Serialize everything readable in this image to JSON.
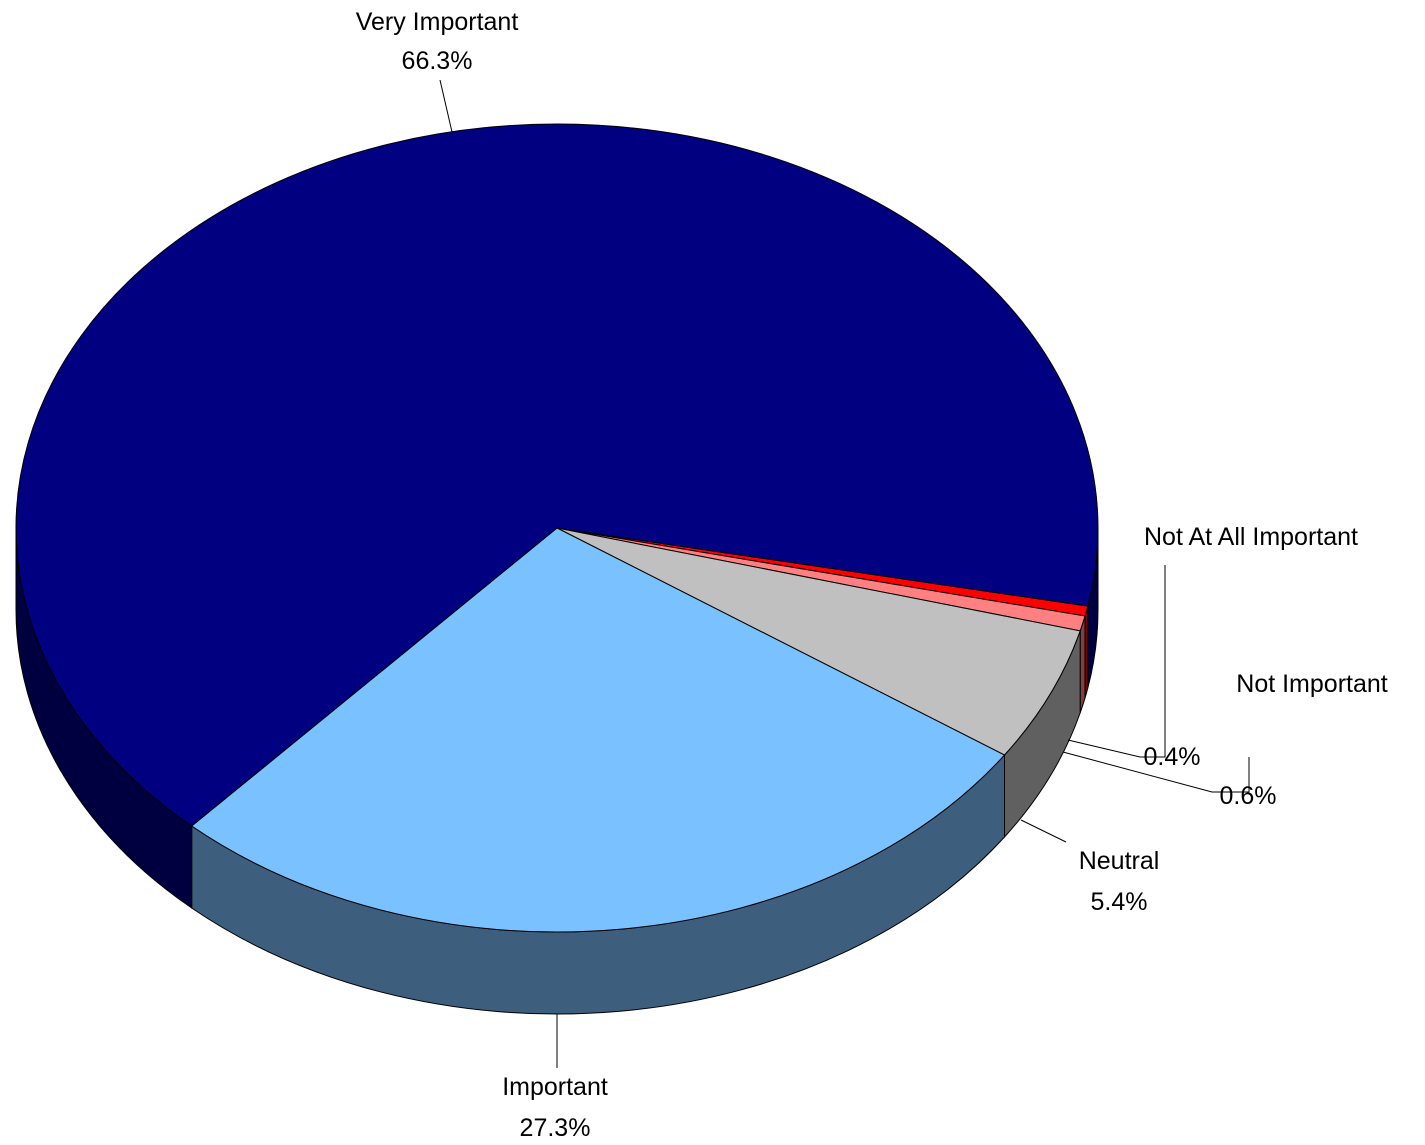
{
  "chart_data": {
    "type": "pie",
    "title": "",
    "slices": [
      {
        "label": "Very Important",
        "value": 66.3,
        "display": "66.3%",
        "color": "#000080",
        "side_color": "#000040"
      },
      {
        "label": "Important",
        "value": 27.3,
        "display": "27.3%",
        "color": "#7AC2FF",
        "side_color": "#3D5F7D"
      },
      {
        "label": "Neutral",
        "value": 5.4,
        "display": "5.4%",
        "color": "#C0C0C0",
        "side_color": "#606060"
      },
      {
        "label": "Not Important",
        "value": 0.6,
        "display": "0.6%",
        "color": "#FF8080",
        "side_color": "#804040"
      },
      {
        "label": "Not At All Important",
        "value": 0.4,
        "display": "0.4%",
        "color": "#FF0000",
        "side_color": "#800000"
      }
    ],
    "style": "3d-exploded-tilt",
    "legend": "none",
    "data_labels": "label-and-percent-with-leader-lines"
  }
}
